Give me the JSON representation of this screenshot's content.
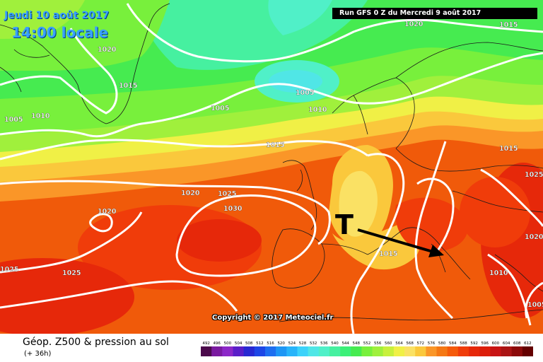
{
  "header": {
    "date": "Jeudi 10 août 2017",
    "time": "14:00 locale",
    "run": "Run GFS 0 Z du Mercredi 9 août 2017"
  },
  "copyright": "Copyright © 2017 Meteociel.fr",
  "legend": {
    "title": "Géop. Z500 & pression au sol",
    "subtitle": "(+ 36h)",
    "scale_values": [
      "492",
      "496",
      "500",
      "504",
      "508",
      "512",
      "516",
      "520",
      "524",
      "528",
      "532",
      "536",
      "540",
      "544",
      "548",
      "552",
      "556",
      "560",
      "564",
      "568",
      "572",
      "576",
      "580",
      "584",
      "588",
      "592",
      "596",
      "600",
      "604",
      "608",
      "612"
    ],
    "scale_colors": [
      "#4b0a4b",
      "#7a1aa0",
      "#8c28c8",
      "#5a1ec8",
      "#2828d2",
      "#1e46e6",
      "#1e6ef0",
      "#1e96f5",
      "#28b4fa",
      "#3cd2fa",
      "#50e6e6",
      "#50f0c8",
      "#46f0a0",
      "#3cf078",
      "#46eb50",
      "#78f03c",
      "#a0f03c",
      "#c8f03c",
      "#f0f046",
      "#fae164",
      "#fac83c",
      "#fa9628",
      "#f57814",
      "#f55a0a",
      "#f03c0a",
      "#e6280a",
      "#dc1e0a",
      "#c81414",
      "#aa1414",
      "#8c0a0a",
      "#640000"
    ]
  },
  "pressure_labels": [
    "1020",
    "1015",
    "1020",
    "1015",
    "1005",
    "1010",
    "1005",
    "1005",
    "1010",
    "1015",
    "1015",
    "1020",
    "1025",
    "1030",
    "1020",
    "1025",
    "1015",
    "1025",
    "1020",
    "1025",
    "1010",
    "1005"
  ],
  "low_marker": "T",
  "colors": {
    "label_blue": "#3aa0ff",
    "isobar": "#ffffff",
    "arrow": "#000000"
  }
}
